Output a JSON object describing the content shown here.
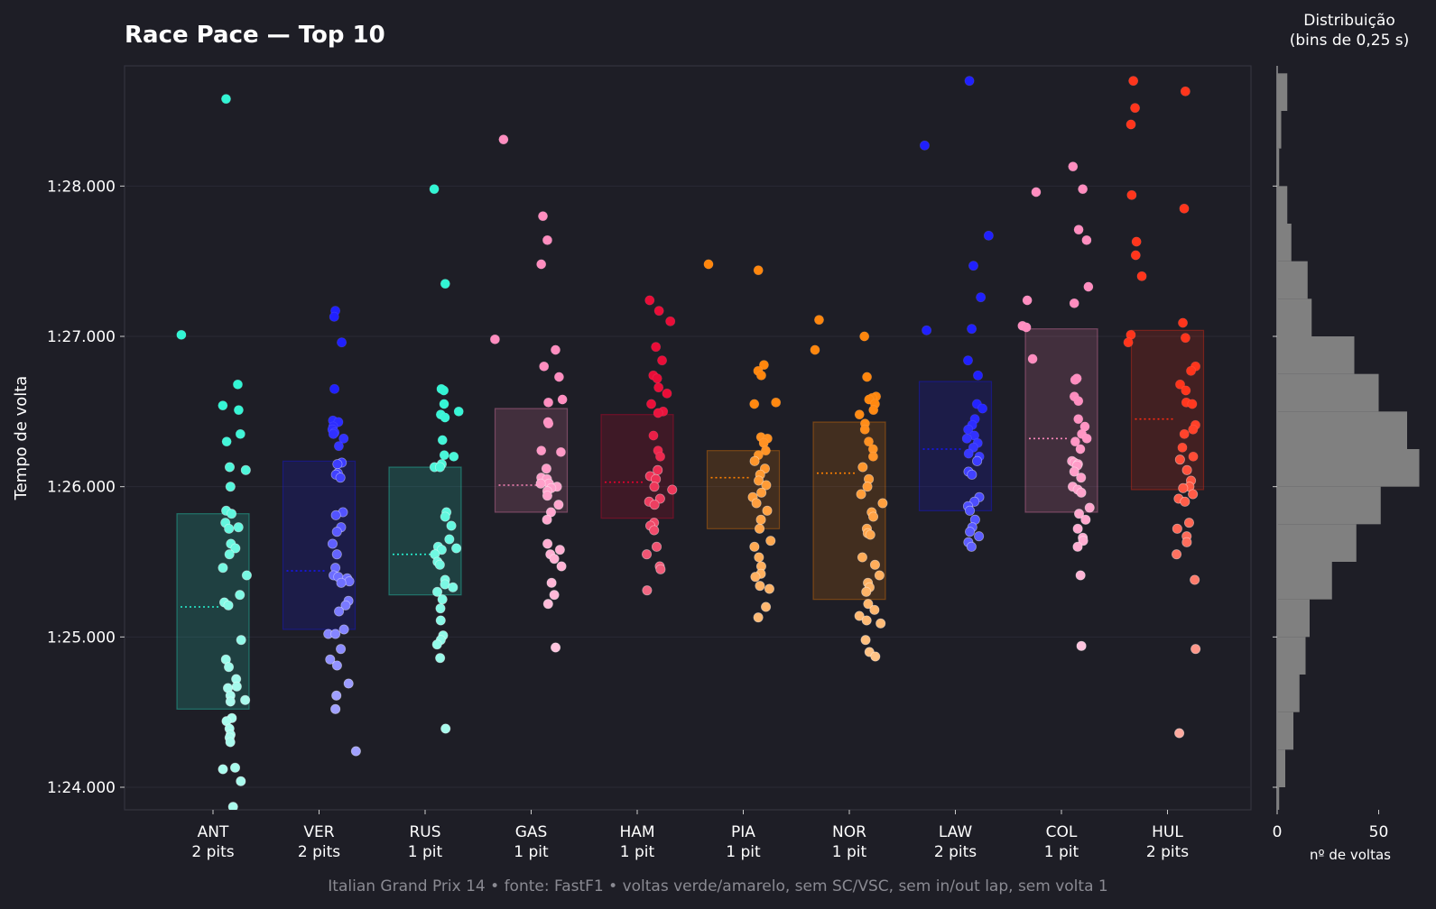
{
  "title": "Race Pace — Top 10",
  "histogram_title": "Distribuição\n(bins de 0,25 s)",
  "footer": "Italian Grand Prix 14  •  fonte: FastF1  •  voltas verde/amarelo, sem SC/VSC, sem in/out lap, sem volta 1",
  "colors": {
    "background": "#1e1e26",
    "histogram_bar": "#808080",
    "ANT": "#27f4d2",
    "VER": "#1414ff",
    "RUS": "#27f4d2",
    "GAS": "#ff87bc",
    "HAM": "#e8002d",
    "PIA": "#ff8000",
    "NOR": "#ff8000",
    "LAW": "#1414ff",
    "COL": "#ff87bc",
    "HUL": "#ff2a10"
  },
  "chart_data": [
    {
      "type": "scatter",
      "subtype": "strip-box",
      "ylabel": "Tempo de volta",
      "ylim": [
        83.85,
        88.8
      ],
      "yticks": [
        84.0,
        85.0,
        86.0,
        87.0,
        88.0
      ],
      "ytick_labels": [
        "1:24.000",
        "1:25.000",
        "1:26.000",
        "1:27.000",
        "1:28.000"
      ],
      "categories": [
        "ANT",
        "VER",
        "RUS",
        "GAS",
        "HAM",
        "PIA",
        "NOR",
        "LAW",
        "COL",
        "HUL"
      ],
      "category_sublabels": [
        "2 pits",
        "2 pits",
        "1 pit",
        "1 pit",
        "1 pit",
        "1 pit",
        "1 pit",
        "2 pits",
        "1 pit",
        "2 pits"
      ],
      "grid": true,
      "series": [
        {
          "driver": "ANT",
          "q1": 84.52,
          "median": 85.2,
          "q3": 85.82,
          "laps": [
            88.58,
            87.01,
            86.68,
            86.54,
            86.51,
            86.35,
            86.3,
            86.13,
            86.11,
            86.0,
            85.84,
            85.82,
            85.76,
            85.73,
            85.72,
            85.62,
            85.59,
            85.55,
            85.46,
            85.41,
            85.28,
            85.23,
            85.21,
            84.98,
            84.85,
            84.8,
            84.72,
            84.67,
            84.66,
            84.61,
            84.58,
            84.57,
            84.46,
            84.44,
            84.39,
            84.35,
            84.33,
            84.3,
            84.13,
            84.12,
            84.04,
            83.87
          ]
        },
        {
          "driver": "VER",
          "q1": 85.05,
          "median": 85.44,
          "q3": 86.17,
          "laps": [
            87.17,
            87.13,
            86.96,
            86.65,
            86.44,
            86.43,
            86.4,
            86.38,
            86.36,
            86.35,
            86.32,
            86.27,
            86.16,
            86.15,
            86.09,
            86.08,
            86.06,
            85.83,
            85.81,
            85.73,
            85.7,
            85.62,
            85.55,
            85.46,
            85.41,
            85.4,
            85.39,
            85.37,
            85.36,
            85.24,
            85.21,
            85.17,
            85.05,
            85.02,
            85.02,
            84.92,
            84.85,
            84.81,
            84.69,
            84.61,
            84.52,
            84.24
          ]
        },
        {
          "driver": "RUS",
          "q1": 85.28,
          "median": 85.55,
          "q3": 86.13,
          "laps": [
            87.98,
            87.35,
            86.65,
            86.64,
            86.55,
            86.5,
            86.48,
            86.46,
            86.31,
            86.21,
            86.2,
            86.15,
            86.13,
            86.13,
            85.83,
            85.8,
            85.74,
            85.65,
            85.6,
            85.59,
            85.58,
            85.55,
            85.5,
            85.48,
            85.38,
            85.35,
            85.33,
            85.3,
            85.25,
            85.19,
            85.11,
            85.01,
            84.98,
            84.95,
            84.86,
            84.39
          ]
        },
        {
          "driver": "GAS",
          "q1": 85.83,
          "median": 86.01,
          "q3": 86.52,
          "laps": [
            88.31,
            87.8,
            87.64,
            87.48,
            86.98,
            86.91,
            86.8,
            86.73,
            86.58,
            86.56,
            86.43,
            86.42,
            86.24,
            86.23,
            86.12,
            86.06,
            86.05,
            86.02,
            86.02,
            86.0,
            85.99,
            85.97,
            85.94,
            85.88,
            85.83,
            85.78,
            85.62,
            85.58,
            85.55,
            85.52,
            85.47,
            85.36,
            85.28,
            85.22,
            84.93
          ]
        },
        {
          "driver": "HAM",
          "q1": 85.79,
          "median": 86.03,
          "q3": 86.48,
          "laps": [
            87.24,
            87.17,
            87.1,
            86.93,
            86.84,
            86.74,
            86.72,
            86.66,
            86.62,
            86.55,
            86.5,
            86.49,
            86.34,
            86.24,
            86.2,
            86.11,
            86.07,
            86.05,
            86.0,
            85.98,
            85.92,
            85.9,
            85.88,
            85.76,
            85.74,
            85.71,
            85.6,
            85.55,
            85.47,
            85.45,
            85.31
          ]
        },
        {
          "driver": "PIA",
          "q1": 85.72,
          "median": 86.06,
          "q3": 86.24,
          "laps": [
            87.48,
            87.44,
            86.81,
            86.77,
            86.74,
            86.56,
            86.55,
            86.33,
            86.32,
            86.29,
            86.24,
            86.21,
            86.17,
            86.12,
            86.08,
            86.04,
            86.01,
            85.96,
            85.93,
            85.89,
            85.84,
            85.78,
            85.72,
            85.64,
            85.6,
            85.53,
            85.47,
            85.42,
            85.4,
            85.34,
            85.32,
            85.2,
            85.13
          ]
        },
        {
          "driver": "NOR",
          "q1": 85.25,
          "median": 86.09,
          "q3": 86.43,
          "laps": [
            87.11,
            87.0,
            86.91,
            86.73,
            86.6,
            86.59,
            86.58,
            86.55,
            86.51,
            86.48,
            86.42,
            86.38,
            86.3,
            86.25,
            86.2,
            86.13,
            86.05,
            86.0,
            85.95,
            85.89,
            85.83,
            85.8,
            85.72,
            85.69,
            85.68,
            85.53,
            85.48,
            85.41,
            85.36,
            85.33,
            85.3,
            85.22,
            85.18,
            85.14,
            85.11,
            85.09,
            84.98,
            84.9,
            84.87
          ]
        },
        {
          "driver": "LAW",
          "q1": 85.84,
          "median": 86.25,
          "q3": 86.7,
          "laps": [
            88.7,
            88.27,
            87.67,
            87.47,
            87.26,
            87.05,
            87.04,
            86.84,
            86.74,
            86.55,
            86.52,
            86.45,
            86.41,
            86.38,
            86.34,
            86.32,
            86.29,
            86.26,
            86.22,
            86.2,
            86.17,
            86.1,
            86.08,
            85.93,
            85.9,
            85.87,
            85.84,
            85.78,
            85.73,
            85.7,
            85.67,
            85.63,
            85.6
          ]
        },
        {
          "driver": "COL",
          "q1": 85.83,
          "median": 86.32,
          "q3": 87.05,
          "laps": [
            88.13,
            87.98,
            87.96,
            87.71,
            87.64,
            87.33,
            87.24,
            87.22,
            87.07,
            87.06,
            86.85,
            86.72,
            86.71,
            86.6,
            86.57,
            86.45,
            86.4,
            86.35,
            86.32,
            86.3,
            86.25,
            86.17,
            86.16,
            86.15,
            86.14,
            86.1,
            86.06,
            86.0,
            85.98,
            85.96,
            85.86,
            85.82,
            85.78,
            85.72,
            85.66,
            85.64,
            85.6,
            85.41,
            84.94
          ]
        },
        {
          "driver": "HUL",
          "q1": 85.98,
          "median": 86.45,
          "q3": 87.04,
          "laps": [
            88.7,
            88.63,
            88.52,
            88.41,
            87.94,
            87.85,
            87.63,
            87.54,
            87.4,
            87.09,
            87.01,
            86.99,
            86.96,
            86.8,
            86.77,
            86.68,
            86.64,
            86.56,
            86.55,
            86.41,
            86.38,
            86.35,
            86.26,
            86.2,
            86.18,
            86.11,
            86.04,
            86.0,
            85.99,
            85.95,
            85.92,
            85.9,
            85.76,
            85.72,
            85.67,
            85.63,
            85.55,
            85.38,
            84.92,
            84.36
          ]
        }
      ]
    },
    {
      "type": "bar",
      "orientation": "horizontal",
      "title": "Distribuição\n(bins de 0,25 s)",
      "xlabel": "nº de voltas",
      "xticks": [
        0,
        50
      ],
      "bin_width_s": 0.25,
      "bins_start": [
        83.75,
        84.0,
        84.25,
        84.5,
        84.75,
        85.0,
        85.25,
        85.5,
        85.75,
        86.0,
        86.25,
        86.5,
        86.75,
        87.0,
        87.25,
        87.5,
        87.75,
        88.0,
        88.25,
        88.5
      ],
      "values": [
        1,
        4,
        8,
        11,
        14,
        16,
        27,
        39,
        51,
        70,
        64,
        50,
        38,
        17,
        15,
        7,
        5,
        1,
        2,
        5
      ]
    }
  ]
}
